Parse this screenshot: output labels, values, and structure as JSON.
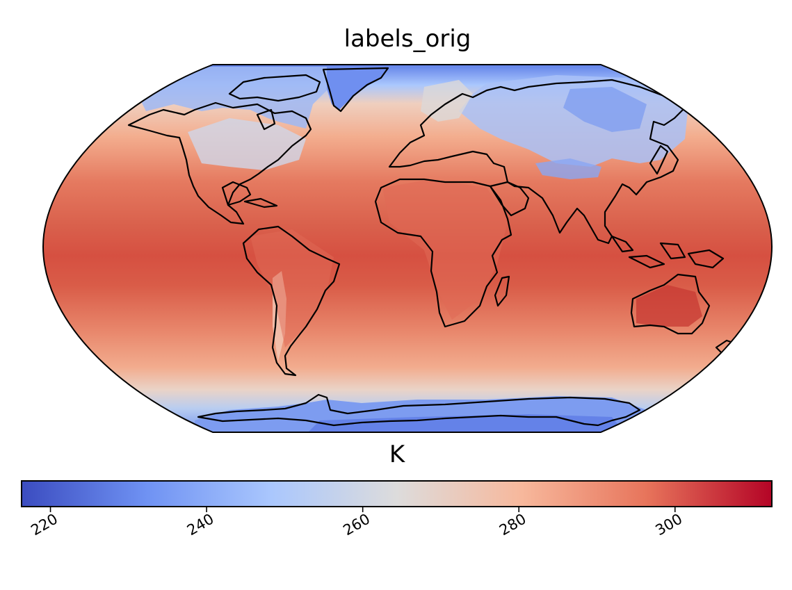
{
  "title": "labels_orig",
  "colorbar": {
    "label": "K",
    "min": 216.3,
    "max": 312.4,
    "ticks": [
      220,
      240,
      260,
      280,
      300
    ],
    "colormap": "coolwarm",
    "stops": [
      "#3b4cc0",
      "#6f92f3",
      "#aac7fd",
      "#dddcdc",
      "#f7b89c",
      "#e7745b",
      "#b40426"
    ]
  },
  "map": {
    "projection": "Robinson",
    "variable": "temperature",
    "coastlines": true,
    "colors": {
      "ocean_tropical": "#d75445",
      "ocean_mid": "#e7745b",
      "ocean_high": "#f2a889",
      "polar": "#6f92f3",
      "outline": "#000000"
    }
  }
}
